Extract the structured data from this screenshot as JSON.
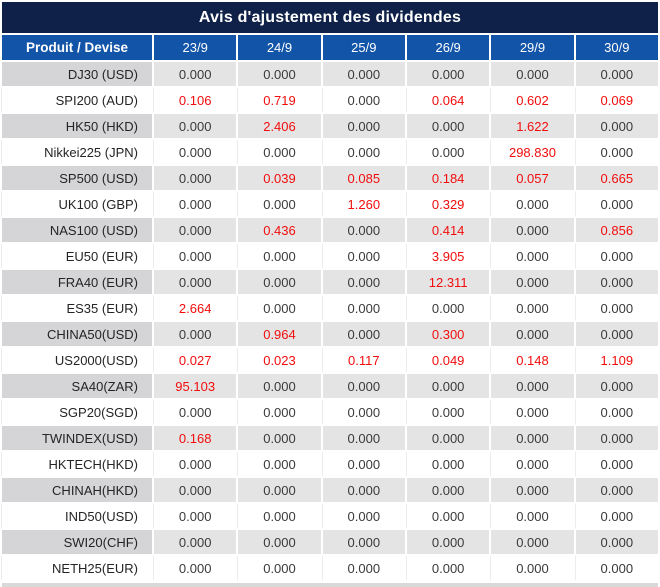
{
  "title": "Avis d'ajustement des dividendes",
  "table": {
    "product_header": "Produit / Devise",
    "date_headers": [
      "23/9",
      "24/9",
      "25/9",
      "26/9",
      "29/9",
      "30/9"
    ],
    "rows": [
      {
        "product": "DJ30 (USD)",
        "values": [
          "0.000",
          "0.000",
          "0.000",
          "0.000",
          "0.000",
          "0.000"
        ],
        "red": [
          0,
          0,
          0,
          0,
          0,
          0
        ]
      },
      {
        "product": "SPI200 (AUD)",
        "values": [
          "0.106",
          "0.719",
          "0.000",
          "0.064",
          "0.602",
          "0.069"
        ],
        "red": [
          1,
          1,
          0,
          1,
          1,
          1
        ]
      },
      {
        "product": "HK50 (HKD)",
        "values": [
          "0.000",
          "2.406",
          "0.000",
          "0.000",
          "1.622",
          "0.000"
        ],
        "red": [
          0,
          1,
          0,
          0,
          1,
          0
        ]
      },
      {
        "product": "Nikkei225 (JPN)",
        "values": [
          "0.000",
          "0.000",
          "0.000",
          "0.000",
          "298.830",
          "0.000"
        ],
        "red": [
          0,
          0,
          0,
          0,
          1,
          0
        ]
      },
      {
        "product": "SP500 (USD)",
        "values": [
          "0.000",
          "0.039",
          "0.085",
          "0.184",
          "0.057",
          "0.665"
        ],
        "red": [
          0,
          1,
          1,
          1,
          1,
          1
        ]
      },
      {
        "product": "UK100 (GBP)",
        "values": [
          "0.000",
          "0.000",
          "1.260",
          "0.329",
          "0.000",
          "0.000"
        ],
        "red": [
          0,
          0,
          1,
          1,
          0,
          0
        ]
      },
      {
        "product": "NAS100 (USD)",
        "values": [
          "0.000",
          "0.436",
          "0.000",
          "0.414",
          "0.000",
          "0.856"
        ],
        "red": [
          0,
          1,
          0,
          1,
          0,
          1
        ]
      },
      {
        "product": "EU50 (EUR)",
        "values": [
          "0.000",
          "0.000",
          "0.000",
          "3.905",
          "0.000",
          "0.000"
        ],
        "red": [
          0,
          0,
          0,
          1,
          0,
          0
        ]
      },
      {
        "product": "FRA40 (EUR)",
        "values": [
          "0.000",
          "0.000",
          "0.000",
          "12.311",
          "0.000",
          "0.000"
        ],
        "red": [
          0,
          0,
          0,
          1,
          0,
          0
        ]
      },
      {
        "product": "ES35 (EUR)",
        "values": [
          "2.664",
          "0.000",
          "0.000",
          "0.000",
          "0.000",
          "0.000"
        ],
        "red": [
          1,
          0,
          0,
          0,
          0,
          0
        ]
      },
      {
        "product": "CHINA50(USD)",
        "values": [
          "0.000",
          "0.964",
          "0.000",
          "0.300",
          "0.000",
          "0.000"
        ],
        "red": [
          0,
          1,
          0,
          1,
          0,
          0
        ]
      },
      {
        "product": "US2000(USD)",
        "values": [
          "0.027",
          "0.023",
          "0.117",
          "0.049",
          "0.148",
          "1.109"
        ],
        "red": [
          1,
          1,
          1,
          1,
          1,
          1
        ]
      },
      {
        "product": "SA40(ZAR)",
        "values": [
          "95.103",
          "0.000",
          "0.000",
          "0.000",
          "0.000",
          "0.000"
        ],
        "red": [
          1,
          0,
          0,
          0,
          0,
          0
        ]
      },
      {
        "product": "SGP20(SGD)",
        "values": [
          "0.000",
          "0.000",
          "0.000",
          "0.000",
          "0.000",
          "0.000"
        ],
        "red": [
          0,
          0,
          0,
          0,
          0,
          0
        ]
      },
      {
        "product": "TWINDEX(USD)",
        "values": [
          "0.168",
          "0.000",
          "0.000",
          "0.000",
          "0.000",
          "0.000"
        ],
        "red": [
          1,
          0,
          0,
          0,
          0,
          0
        ]
      },
      {
        "product": "HKTECH(HKD)",
        "values": [
          "0.000",
          "0.000",
          "0.000",
          "0.000",
          "0.000",
          "0.000"
        ],
        "red": [
          0,
          0,
          0,
          0,
          0,
          0
        ]
      },
      {
        "product": "CHINAH(HKD)",
        "values": [
          "0.000",
          "0.000",
          "0.000",
          "0.000",
          "0.000",
          "0.000"
        ],
        "red": [
          0,
          0,
          0,
          0,
          0,
          0
        ]
      },
      {
        "product": "IND50(USD)",
        "values": [
          "0.000",
          "0.000",
          "0.000",
          "0.000",
          "0.000",
          "0.000"
        ],
        "red": [
          0,
          0,
          0,
          0,
          0,
          0
        ]
      },
      {
        "product": "SWI20(CHF)",
        "values": [
          "0.000",
          "0.000",
          "0.000",
          "0.000",
          "0.000",
          "0.000"
        ],
        "red": [
          0,
          0,
          0,
          0,
          0,
          0
        ]
      },
      {
        "product": "NETH25(EUR)",
        "values": [
          "0.000",
          "0.000",
          "0.000",
          "0.000",
          "0.000",
          "0.000"
        ],
        "red": [
          0,
          0,
          0,
          0,
          0,
          0
        ]
      }
    ]
  },
  "colors": {
    "title_bg": "#0f2148",
    "header_bg": "#1254a8",
    "alt_product_bg": "#d5d5d8",
    "alt_value_bg": "#e4e4e4",
    "highlight_red": "#f20d0d",
    "value_text": "#3a3a3a",
    "product_text": "#242424",
    "header_text": "#ffffff",
    "bottom_strip": "#d9d9d9"
  }
}
